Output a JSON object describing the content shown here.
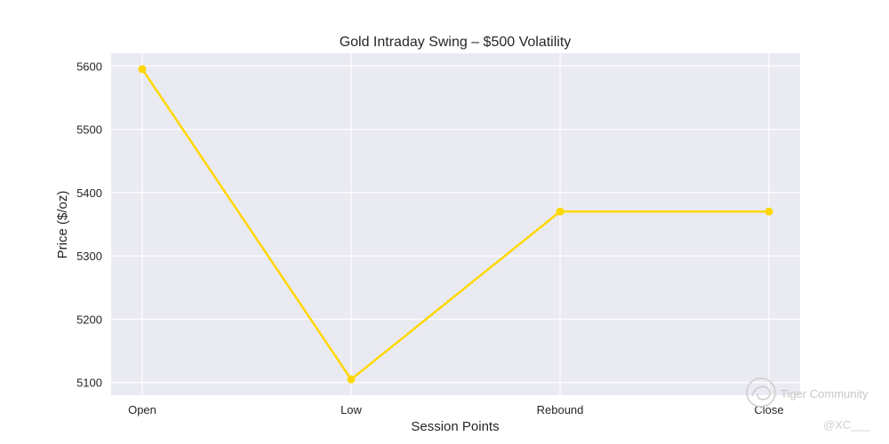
{
  "chart_data": {
    "type": "line",
    "title": "Gold Intraday Swing – $500 Volatility",
    "xlabel": "Session Points",
    "ylabel": "Price ($/oz)",
    "categories": [
      "Open",
      "Low",
      "Rebound",
      "Close"
    ],
    "series": [
      {
        "values": [
          5595,
          5105,
          5370,
          5370
        ],
        "color": "#FFD700"
      }
    ],
    "ylim": [
      5080,
      5620
    ],
    "yticks": [
      5100,
      5200,
      5300,
      5400,
      5500,
      5600
    ],
    "grid": true,
    "style": {
      "background": "#EAEAF2",
      "grid_color": "#ffffff"
    }
  },
  "watermark": {
    "brand": "Tiger Community",
    "handle": "@XC___"
  }
}
